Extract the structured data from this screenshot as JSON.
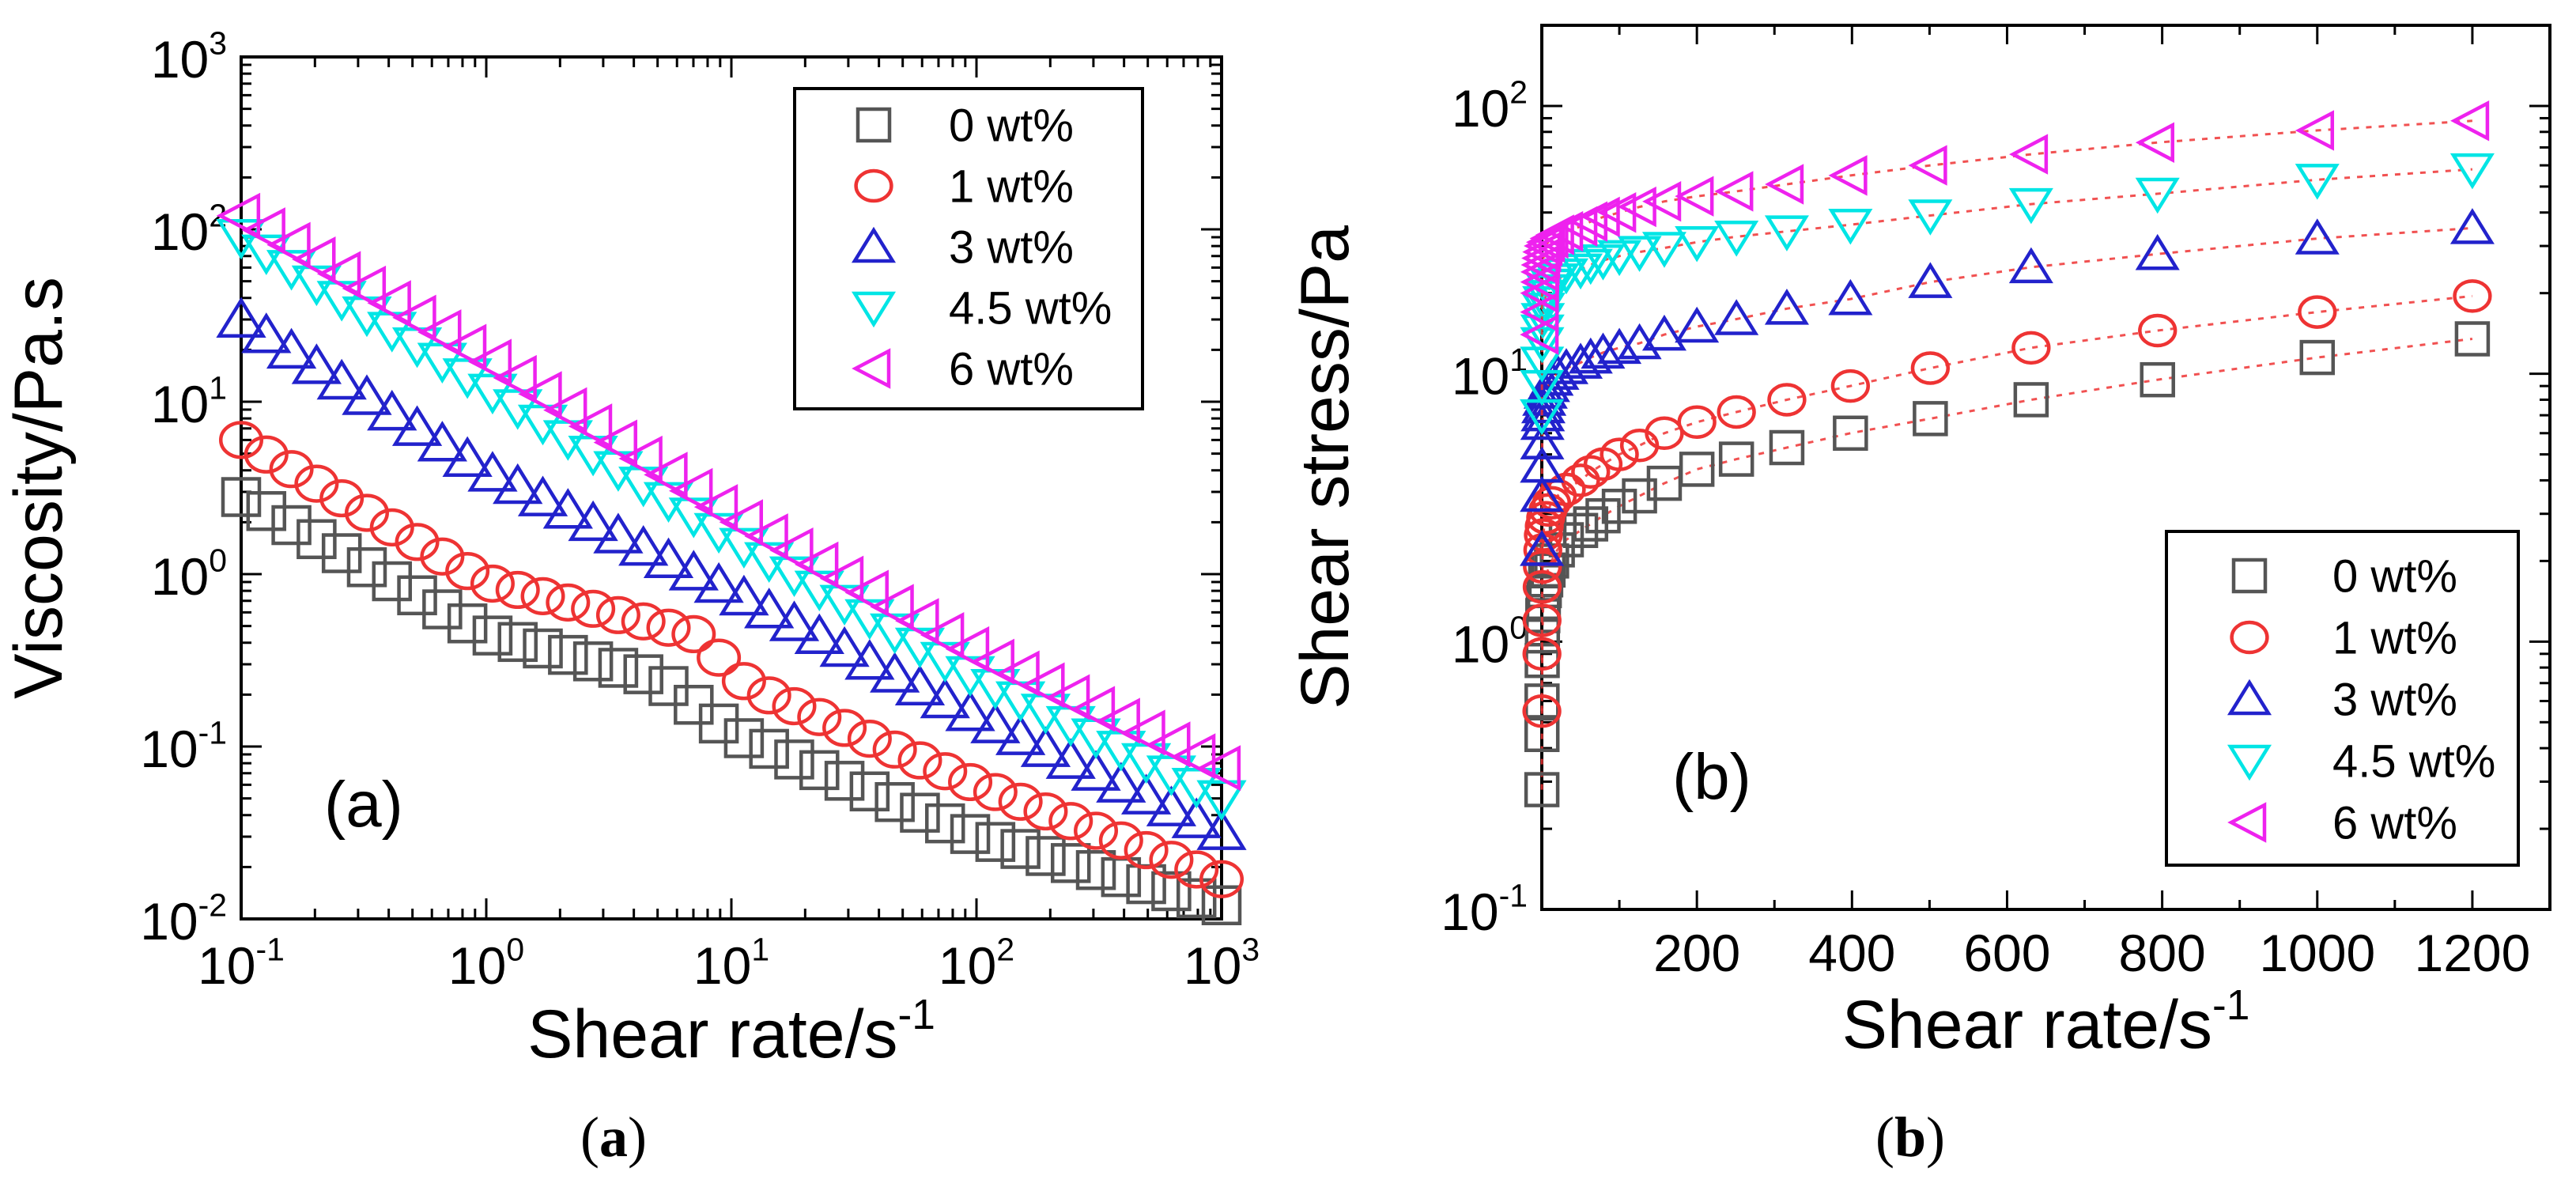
{
  "chart_data": [
    {
      "panel": "a",
      "type": "scatter",
      "x_scale": "log",
      "y_scale": "log",
      "xlabel": "Shear rate/s",
      "xlabel_exponent": "-1",
      "ylabel": "Viscosity/Pa.s",
      "xlim": [
        0.1,
        1000
      ],
      "ylim": [
        0.01,
        1000
      ],
      "x_ticks": [
        {
          "value": 0.1,
          "base": "10",
          "exp": "-1"
        },
        {
          "value": 1,
          "base": "10",
          "exp": "0"
        },
        {
          "value": 10,
          "base": "10",
          "exp": "1"
        },
        {
          "value": 100,
          "base": "10",
          "exp": "2"
        },
        {
          "value": 1000,
          "base": "10",
          "exp": "3"
        }
      ],
      "y_ticks": [
        {
          "value": 0.01,
          "base": "10",
          "exp": "-2"
        },
        {
          "value": 0.1,
          "base": "10",
          "exp": "-1"
        },
        {
          "value": 1,
          "base": "10",
          "exp": "0"
        },
        {
          "value": 10,
          "base": "10",
          "exp": "1"
        },
        {
          "value": 100,
          "base": "10",
          "exp": "2"
        },
        {
          "value": 1000,
          "base": "10",
          "exp": "3"
        }
      ],
      "annotation": "(a)",
      "legend": [
        "0 wt%",
        "1 wt%",
        "3 wt%",
        "4.5 wt%",
        "6 wt%"
      ],
      "series": [
        {
          "name": "0 wt%",
          "marker": "square",
          "color": "#555555",
          "x_range": [
            0.1,
            1000
          ],
          "points": 40,
          "anchors": [
            [
              0.1,
              2.8
            ],
            [
              1,
              0.45
            ],
            [
              5,
              0.25
            ],
            [
              10,
              0.12
            ],
            [
              100,
              0.03
            ],
            [
              1000,
              0.012
            ]
          ]
        },
        {
          "name": "1 wt%",
          "marker": "circle",
          "color": "#ee3333",
          "x_range": [
            0.1,
            1000
          ],
          "points": 40,
          "anchors": [
            [
              0.1,
              6
            ],
            [
              1,
              0.9
            ],
            [
              7,
              0.45
            ],
            [
              12,
              0.22
            ],
            [
              100,
              0.06
            ],
            [
              1000,
              0.017
            ]
          ]
        },
        {
          "name": "3 wt%",
          "marker": "triangle-up",
          "color": "#2222cc",
          "x_range": [
            0.1,
            1000
          ],
          "points": 40,
          "anchors": [
            [
              0.1,
              30
            ],
            [
              1,
              4
            ],
            [
              10,
              0.8
            ],
            [
              100,
              0.15
            ],
            [
              1000,
              0.032
            ]
          ]
        },
        {
          "name": "4.5 wt%",
          "marker": "triangle-down",
          "color": "#00e5e5",
          "x_range": [
            0.1,
            1000
          ],
          "points": 40,
          "anchors": [
            [
              0.1,
              90
            ],
            [
              1,
              12
            ],
            [
              10,
              1.6
            ],
            [
              100,
              0.25
            ],
            [
              1000,
              0.05
            ]
          ]
        },
        {
          "name": "6 wt%",
          "marker": "triangle-left",
          "color": "#ee22ee",
          "x_range": [
            0.1,
            1000
          ],
          "points": 40,
          "anchors": [
            [
              0.1,
              120
            ],
            [
              1,
              18
            ],
            [
              10,
              2.2
            ],
            [
              100,
              0.35
            ],
            [
              1000,
              0.075
            ]
          ]
        }
      ]
    },
    {
      "panel": "b",
      "type": "scatter",
      "x_scale": "linear",
      "y_scale": "log",
      "xlabel": "Shear rate/s",
      "xlabel_exponent": "-1",
      "ylabel": "Shear stress/Pa",
      "xlim": [
        0,
        1300
      ],
      "ylim": [
        0.1,
        200
      ],
      "x_ticks": [
        {
          "value": 200,
          "label": "200"
        },
        {
          "value": 400,
          "label": "400"
        },
        {
          "value": 600,
          "label": "600"
        },
        {
          "value": 800,
          "label": "800"
        },
        {
          "value": 1000,
          "label": "1000"
        },
        {
          "value": 1200,
          "label": "1200"
        }
      ],
      "y_ticks": [
        {
          "value": 0.1,
          "base": "10",
          "exp": "-1"
        },
        {
          "value": 1,
          "base": "10",
          "exp": "0"
        },
        {
          "value": 10,
          "base": "10",
          "exp": "1"
        },
        {
          "value": 100,
          "base": "10",
          "exp": "2"
        }
      ],
      "annotation": "(b)",
      "legend": [
        "0 wt%",
        "1 wt%",
        "3 wt%",
        "4.5 wt%",
        "6 wt%"
      ],
      "connector": {
        "style": "dotted",
        "color": "#ee3333"
      },
      "series": [
        {
          "name": "0 wt%",
          "marker": "square",
          "color": "#555555",
          "x": [
            0.1,
            0.2,
            0.3,
            0.5,
            0.8,
            1.3,
            2,
            3.2,
            5,
            8,
            12.6,
            20,
            31.6,
            50,
            63,
            79,
            100,
            126,
            158,
            200,
            251,
            316,
            398,
            501,
            631,
            794,
            1000,
            1200
          ],
          "y": [
            0.28,
            0.45,
            0.6,
            0.85,
            1.05,
            1.25,
            1.4,
            1.55,
            1.7,
            1.85,
            2.0,
            2.2,
            2.4,
            2.6,
            2.75,
            2.95,
            3.2,
            3.5,
            3.9,
            4.4,
            4.8,
            5.3,
            6.0,
            6.8,
            8.0,
            9.5,
            11.5,
            13.5
          ]
        },
        {
          "name": "1 wt%",
          "marker": "circle",
          "color": "#ee3333",
          "x": [
            0.1,
            0.2,
            0.3,
            0.5,
            0.8,
            1.3,
            2,
            3.2,
            5,
            8,
            12.6,
            20,
            31.6,
            50,
            63,
            79,
            100,
            126,
            158,
            200,
            251,
            316,
            398,
            501,
            631,
            794,
            1000,
            1200
          ],
          "y": [
            0.55,
            0.9,
            1.2,
            1.6,
            1.9,
            2.2,
            2.5,
            2.7,
            2.9,
            3.1,
            3.3,
            3.5,
            3.7,
            4.0,
            4.3,
            4.6,
            5.0,
            5.4,
            6.0,
            6.6,
            7.2,
            8.0,
            9.0,
            10.5,
            12.5,
            14.5,
            17.0,
            19.5
          ]
        },
        {
          "name": "3 wt%",
          "marker": "triangle-up",
          "color": "#2222cc",
          "x": [
            0.1,
            0.2,
            0.3,
            0.5,
            0.8,
            1.3,
            2,
            3.2,
            5,
            8,
            12.6,
            20,
            31.6,
            50,
            63,
            79,
            100,
            126,
            158,
            200,
            251,
            316,
            398,
            501,
            631,
            794,
            1000,
            1200
          ],
          "y": [
            2.2,
            3.5,
            4.5,
            5.5,
            6.5,
            7.0,
            7.5,
            8.0,
            8.5,
            9.0,
            9.5,
            10.0,
            10.5,
            11.0,
            11.5,
            12.0,
            12.5,
            13.0,
            14.0,
            15.0,
            16.0,
            17.5,
            19.0,
            22.0,
            25.0,
            28.0,
            32.0,
            35.0
          ]
        },
        {
          "name": "4.5 wt%",
          "marker": "triangle-down",
          "color": "#00e5e5",
          "x": [
            0.1,
            0.2,
            0.3,
            0.5,
            0.8,
            1.3,
            2,
            3.2,
            5,
            8,
            12.6,
            20,
            31.6,
            50,
            63,
            79,
            100,
            126,
            158,
            200,
            251,
            316,
            398,
            501,
            631,
            794,
            1000,
            1200
          ],
          "y": [
            7.0,
            9.0,
            11.0,
            13.0,
            14.5,
            16.0,
            17.5,
            18.5,
            19.5,
            20.5,
            21.5,
            22.5,
            23.5,
            24.5,
            25.5,
            26.5,
            27.5,
            28.5,
            29.5,
            31.0,
            32.5,
            34.0,
            36.0,
            39.0,
            43.0,
            47.0,
            53.0,
            58.0
          ]
        },
        {
          "name": "6 wt%",
          "marker": "triangle-left",
          "color": "#ee22ee",
          "x": [
            0.1,
            0.2,
            0.3,
            0.5,
            0.8,
            1.3,
            2,
            3.2,
            5,
            8,
            12.6,
            20,
            31.6,
            50,
            63,
            79,
            100,
            126,
            158,
            200,
            251,
            316,
            398,
            501,
            631,
            794,
            1000,
            1200
          ],
          "y": [
            14.0,
            17.0,
            20.0,
            22.0,
            24.0,
            25.5,
            27.0,
            28.5,
            30.0,
            31.0,
            32.0,
            33.0,
            34.0,
            35.5,
            37.0,
            38.5,
            40.0,
            42.0,
            44.0,
            46.0,
            48.0,
            51.0,
            55.0,
            60.0,
            66.0,
            73.0,
            81.0,
            88.0
          ]
        }
      ]
    }
  ],
  "captions": [
    {
      "open": "(",
      "letter": "a",
      "close": ")"
    },
    {
      "open": "(",
      "letter": "b",
      "close": ")"
    }
  ]
}
